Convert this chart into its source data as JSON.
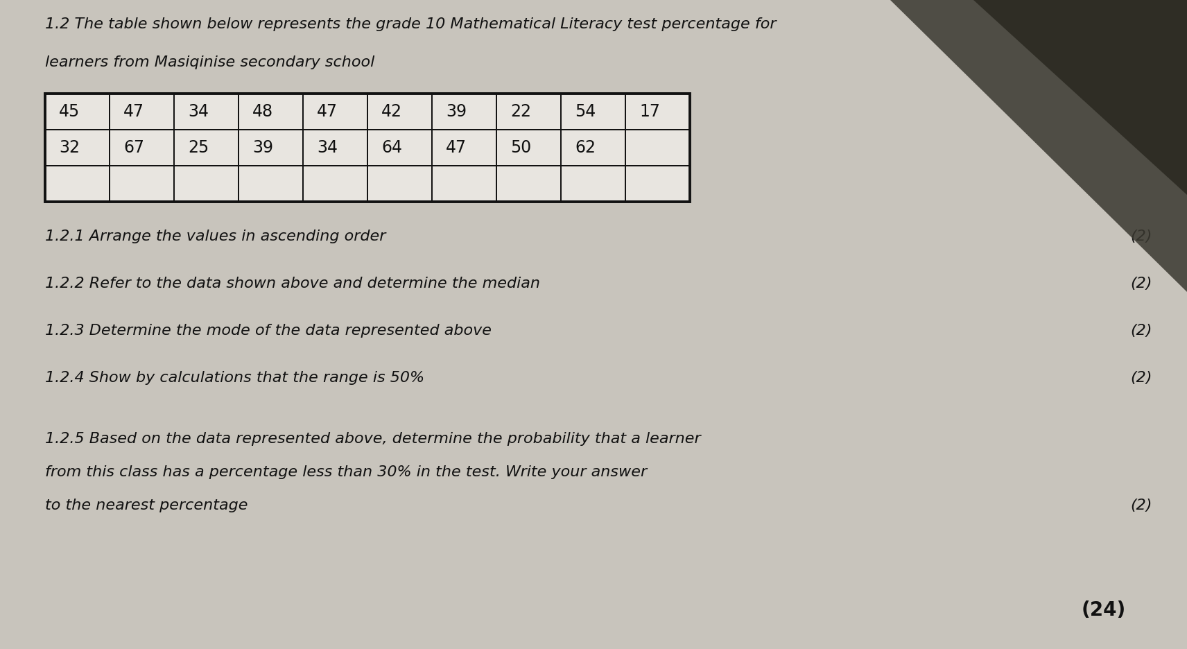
{
  "title_line1": "1.2 The table shown below represents the grade 10 Mathematical Literacy test percentage for",
  "title_line2": "learners from Masiqinise secondary school",
  "table_row1": [
    "45",
    "47",
    "34",
    "48",
    "47",
    "42",
    "39",
    "22",
    "54",
    "17"
  ],
  "table_row2": [
    "32",
    "67",
    "25",
    "39",
    "34",
    "64",
    "47",
    "50",
    "62",
    ""
  ],
  "table_row3": [
    "",
    "",
    "",
    "",
    "",
    "",
    "",
    "",
    "",
    ""
  ],
  "questions": [
    {
      "number": "1.2.1",
      "text": "Arrange the values in ascending order",
      "marks": "(2)"
    },
    {
      "number": "1.2.2",
      "text": "Refer to the data shown above and determine the median",
      "marks": "(2)"
    },
    {
      "number": "1.2.3",
      "text": "Determine the mode of the data represented above",
      "marks": "(2)"
    },
    {
      "number": "1.2.4",
      "text": "Show by calculations that the range is 50%",
      "marks": "(2)"
    },
    {
      "number": "1.2.5",
      "text_lines": [
        "Based on the data represented above, determine the probability that a learner",
        "from this class has a percentage less than 30% in the test. Write your answer",
        "to the nearest percentage"
      ],
      "marks": "(2)"
    }
  ],
  "total_marks": "(24)",
  "bg_color": "#c8c4bc",
  "table_bg": "#e8e5e0",
  "text_color": "#111111",
  "border_color": "#111111",
  "dark_corner_color": "#555550"
}
